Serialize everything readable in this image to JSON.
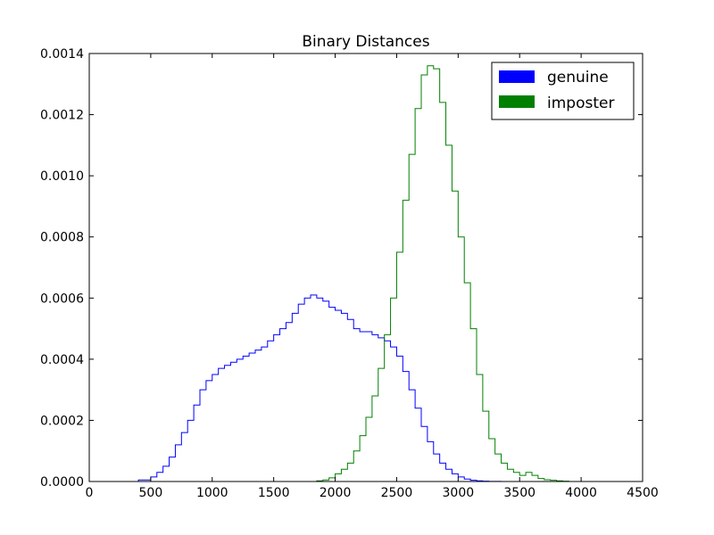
{
  "chart_data": {
    "type": "line",
    "title": "Binary Distances",
    "xlabel": "",
    "ylabel": "",
    "xlim": [
      0,
      4500
    ],
    "ylim": [
      0,
      0.0014
    ],
    "xticks": [
      "0",
      "500",
      "1000",
      "1500",
      "2000",
      "2500",
      "3000",
      "3500",
      "4000",
      "4500"
    ],
    "yticks": [
      "0.0000",
      "0.0002",
      "0.0004",
      "0.0006",
      "0.0008",
      "0.0010",
      "0.0012",
      "0.0014"
    ],
    "grid": false,
    "legend_position": "top-right",
    "series": [
      {
        "name": "genuine",
        "color": "#0000ff",
        "style": "step-histogram",
        "x": [
          300,
          400,
          500,
          550,
          600,
          650,
          700,
          750,
          800,
          850,
          900,
          950,
          1000,
          1050,
          1100,
          1150,
          1200,
          1250,
          1300,
          1350,
          1400,
          1450,
          1500,
          1550,
          1600,
          1650,
          1700,
          1750,
          1800,
          1850,
          1900,
          1950,
          2000,
          2050,
          2100,
          2150,
          2200,
          2250,
          2300,
          2350,
          2400,
          2450,
          2500,
          2550,
          2600,
          2650,
          2700,
          2750,
          2800,
          2850,
          2900,
          2950,
          3000,
          3050,
          3100,
          3150,
          3200,
          3250,
          3300,
          3350,
          3400,
          3500,
          3600,
          3700
        ],
        "values": [
          0.0,
          5e-06,
          1.5e-05,
          3e-05,
          5e-05,
          8e-05,
          0.00012,
          0.00016,
          0.0002,
          0.00025,
          0.0003,
          0.00033,
          0.00035,
          0.00037,
          0.00038,
          0.00039,
          0.0004,
          0.00041,
          0.00042,
          0.00043,
          0.00044,
          0.00046,
          0.00048,
          0.0005,
          0.00052,
          0.00055,
          0.00058,
          0.0006,
          0.00061,
          0.0006,
          0.00059,
          0.00057,
          0.00056,
          0.00055,
          0.00053,
          0.0005,
          0.00049,
          0.00049,
          0.00048,
          0.00047,
          0.00046,
          0.00044,
          0.00041,
          0.00036,
          0.0003,
          0.00024,
          0.00018,
          0.00013,
          9e-05,
          6e-05,
          4e-05,
          2.5e-05,
          1.5e-05,
          8e-06,
          4e-06,
          2e-06,
          1e-06,
          5e-07,
          2e-07,
          0.0,
          0.0,
          0.0,
          0.0,
          0.0
        ]
      },
      {
        "name": "imposter",
        "color": "#008000",
        "style": "step-histogram",
        "x": [
          1800,
          1850,
          1900,
          1950,
          2000,
          2050,
          2100,
          2150,
          2200,
          2250,
          2300,
          2350,
          2400,
          2450,
          2500,
          2550,
          2600,
          2650,
          2700,
          2750,
          2800,
          2850,
          2900,
          2950,
          3000,
          3050,
          3100,
          3150,
          3200,
          3250,
          3300,
          3350,
          3400,
          3450,
          3500,
          3550,
          3600,
          3650,
          3700,
          3750,
          3800,
          3850,
          3900,
          3950,
          4000,
          4050,
          4100
        ],
        "values": [
          0.0,
          2e-06,
          5e-06,
          1.2e-05,
          2.5e-05,
          4e-05,
          6e-05,
          0.0001,
          0.00015,
          0.00021,
          0.00028,
          0.00037,
          0.00048,
          0.0006,
          0.00075,
          0.00092,
          0.00107,
          0.00122,
          0.00133,
          0.00136,
          0.00135,
          0.00124,
          0.0011,
          0.00095,
          0.0008,
          0.00065,
          0.0005,
          0.00035,
          0.00023,
          0.00014,
          9e-05,
          6e-05,
          4e-05,
          3e-05,
          2e-05,
          3e-05,
          2e-05,
          1e-05,
          6e-06,
          4e-06,
          2e-06,
          1e-06,
          0.0,
          0.0,
          0.0,
          0.0,
          0.0
        ]
      }
    ]
  },
  "colors": {
    "genuine": "#0000ff",
    "imposter": "#008000",
    "axes": "#000000"
  }
}
